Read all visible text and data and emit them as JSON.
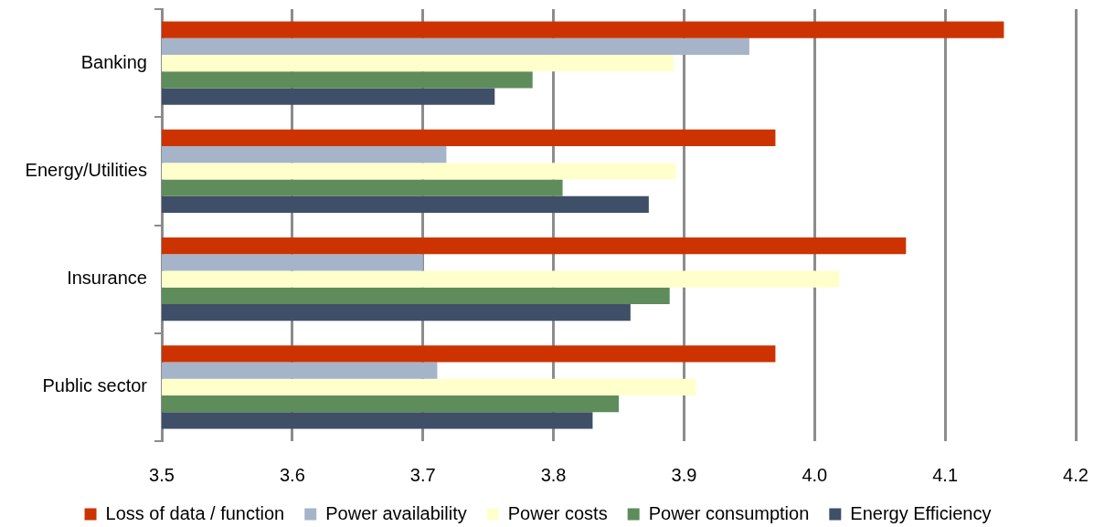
{
  "chart_data": {
    "type": "bar",
    "orientation": "horizontal",
    "categories": [
      "Banking",
      "Energy/Utilities",
      "Insurance",
      "Public sector"
    ],
    "series": [
      {
        "name": "Loss of data / function",
        "color": "#cc3300",
        "values": [
          4.145,
          3.97,
          4.07,
          3.97
        ]
      },
      {
        "name": "Power availability",
        "color": "#a5b4c8",
        "values": [
          3.95,
          3.718,
          3.7,
          3.711
        ]
      },
      {
        "name": "Power costs",
        "color": "#ffffcc",
        "values": [
          3.892,
          3.894,
          4.019,
          3.909
        ]
      },
      {
        "name": "Power consumption",
        "color": "#5e8c5a",
        "values": [
          3.784,
          3.807,
          3.889,
          3.85
        ]
      },
      {
        "name": "Energy Efficiency",
        "color": "#3f4f68",
        "values": [
          3.755,
          3.873,
          3.859,
          3.83
        ]
      }
    ],
    "xlim": [
      3.5,
      4.2
    ],
    "xticks": [
      3.5,
      3.6,
      3.7,
      3.8,
      3.9,
      {
        "value": 4,
        "label": "4.0"
      },
      4.1,
      4.2
    ],
    "grid": "x",
    "legend": "bottom"
  }
}
